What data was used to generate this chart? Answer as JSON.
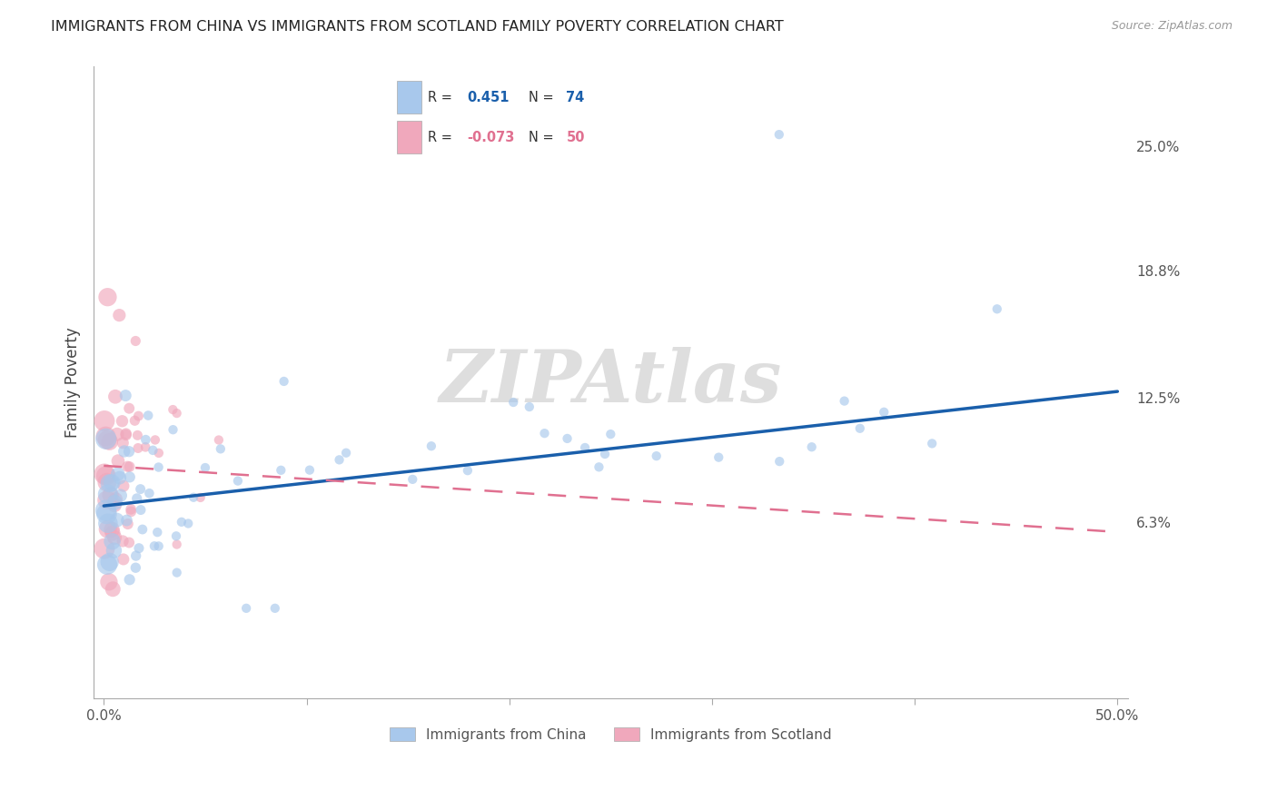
{
  "title": "IMMIGRANTS FROM CHINA VS IMMIGRANTS FROM SCOTLAND FAMILY POVERTY CORRELATION CHART",
  "source": "Source: ZipAtlas.com",
  "ylabel": "Family Poverty",
  "xlim": [
    -0.005,
    0.505
  ],
  "ylim": [
    -0.025,
    0.29
  ],
  "ytick_positions": [
    0.063,
    0.125,
    0.188,
    0.25
  ],
  "ytick_labels": [
    "6.3%",
    "12.5%",
    "18.8%",
    "25.0%"
  ],
  "china_R": 0.451,
  "china_N": 74,
  "scotland_R": -0.073,
  "scotland_N": 50,
  "china_color": "#A8C8EC",
  "scotland_color": "#F0A8BC",
  "china_line_color": "#1A5FAB",
  "scotland_line_color": "#E07090",
  "legend_china_label": "Immigrants from China",
  "legend_scotland_label": "Immigrants from Scotland",
  "watermark": "ZIPAtlas",
  "watermark_color": "#DEDEDE",
  "china_trend_x0": 0.0,
  "china_trend_y0": 0.071,
  "china_trend_x1": 0.5,
  "china_trend_y1": 0.128,
  "scotland_trend_x0": 0.0,
  "scotland_trend_y0": 0.091,
  "scotland_trend_x1": 0.5,
  "scotland_trend_y1": 0.058,
  "grid_color": "#DDDDDD",
  "axis_color": "#AAAAAA",
  "text_color": "#555555",
  "title_color": "#222222",
  "source_color": "#999999"
}
